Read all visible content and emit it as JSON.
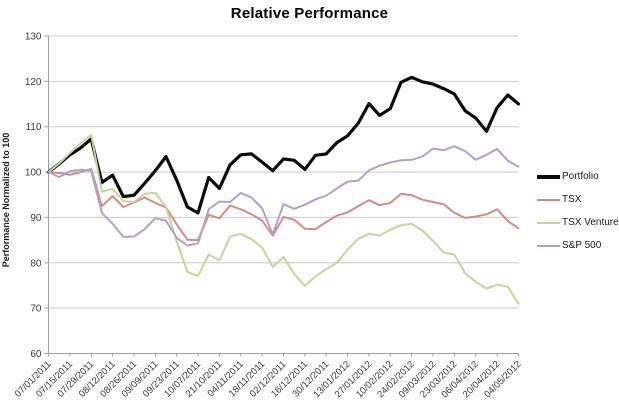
{
  "title": "Relative Performance",
  "chart_data": {
    "type": "line",
    "title": "Relative Performance",
    "xlabel": "",
    "ylabel": "Performance Normalized to 100",
    "ylim": [
      60,
      130
    ],
    "yticks": [
      60,
      70,
      80,
      90,
      100,
      110,
      120,
      130
    ],
    "grid": "horizontal",
    "legend_position": "right",
    "label_every_n_points": 2,
    "x_labels": [
      "07/01/2011",
      "07/15/2011",
      "07/29/2011",
      "08/12/2011",
      "08/26/2011",
      "09/09/2011",
      "09/23/2011",
      "10/07/2011",
      "21/10/2011",
      "04/11/2011",
      "18/11/2011",
      "02/12/2011",
      "16/12/2011",
      "30/12/2011",
      "13/01/2012",
      "27/01/2012",
      "10/02/2012",
      "24/02/2012",
      "09/03/2012",
      "23/03/2012",
      "06/04/2012",
      "20/04/2012",
      "04/05/2012"
    ],
    "series": [
      {
        "name": "Portfolio",
        "color": "#0a0a0a",
        "width": 3.2,
        "values": [
          100,
          101.8,
          103.8,
          105.3,
          107.3,
          97.7,
          99.3,
          94.6,
          94.9,
          97.5,
          100.3,
          103.4,
          98.2,
          92.3,
          91.0,
          98.8,
          96.4,
          101.6,
          103.8,
          104.0,
          102.2,
          100.3,
          102.9,
          102.6,
          100.6,
          103.7,
          104.0,
          106.5,
          108.0,
          110.8,
          115.1,
          112.5,
          114.0,
          119.8,
          120.9,
          119.9,
          119.4,
          118.4,
          117.2,
          113.5,
          111.9,
          109.0,
          114.2,
          117.0,
          115.0
        ]
      },
      {
        "name": "TSX",
        "color": "#d08c89",
        "width": 2,
        "values": [
          100,
          99.8,
          99.4,
          100.0,
          100.7,
          92.5,
          94.7,
          92.3,
          93.3,
          94.4,
          93.2,
          92.2,
          88.5,
          85.1,
          85.0,
          90.6,
          89.8,
          92.6,
          91.8,
          90.7,
          89.3,
          86.0,
          90.1,
          89.5,
          87.5,
          87.4,
          89.0,
          90.4,
          91.1,
          92.5,
          93.8,
          92.7,
          93.2,
          95.2,
          94.9,
          93.9,
          93.4,
          92.9,
          91.0,
          89.9,
          90.2,
          90.7,
          91.8,
          89.2,
          87.6
        ]
      },
      {
        "name": "TSX Venture",
        "color": "#c2d69a",
        "width": 2,
        "values": [
          100,
          101.9,
          104.2,
          106.3,
          108.2,
          95.7,
          96.3,
          93.6,
          93.4,
          95.2,
          95.4,
          92.3,
          84.8,
          78.0,
          77.1,
          81.8,
          80.5,
          85.8,
          86.4,
          85.2,
          83.4,
          79.1,
          81.3,
          77.5,
          74.9,
          77.0,
          78.6,
          80.0,
          82.9,
          85.3,
          86.4,
          86.0,
          87.3,
          88.3,
          88.6,
          87.1,
          84.8,
          82.3,
          81.8,
          77.7,
          75.8,
          74.3,
          75.2,
          74.7,
          71.0
        ]
      },
      {
        "name": "S&P 500",
        "color": "#b2a1c7",
        "width": 2,
        "values": [
          100,
          98.9,
          100.2,
          100.5,
          100.3,
          91.0,
          88.6,
          85.7,
          85.8,
          87.4,
          89.8,
          89.3,
          85.5,
          83.8,
          84.3,
          91.8,
          93.5,
          93.4,
          95.4,
          94.4,
          92.0,
          86.3,
          92.9,
          91.9,
          92.8,
          94.0,
          94.8,
          96.4,
          97.9,
          98.1,
          100.4,
          101.4,
          102.1,
          102.6,
          102.7,
          103.4,
          105.2,
          104.8,
          105.7,
          104.6,
          102.7,
          103.8,
          105.1,
          102.5,
          101.2
        ]
      }
    ],
    "colors": {
      "gridline": "#c8c8c8",
      "axis": "#9e9e9e",
      "tick_text": "#3a3a3a"
    }
  }
}
